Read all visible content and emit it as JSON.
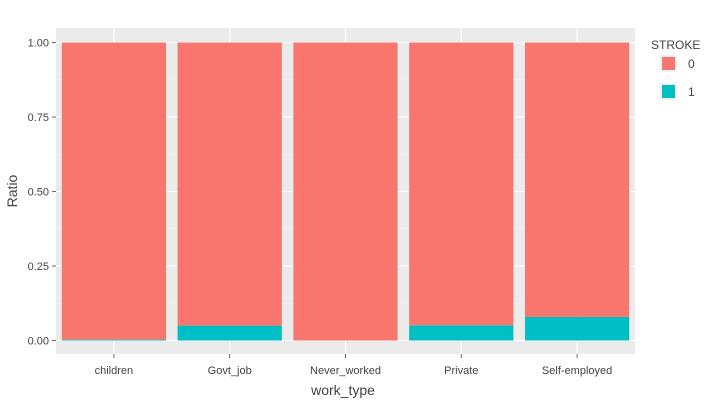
{
  "chart_data": {
    "type": "bar",
    "stacked": true,
    "categories": [
      "children",
      "Govt_job",
      "Never_worked",
      "Private",
      "Self-employed"
    ],
    "series": [
      {
        "name": "0",
        "values": [
          0.997,
          0.95,
          1.0,
          0.949,
          0.921
        ],
        "color": "#F8766D"
      },
      {
        "name": "1",
        "values": [
          0.003,
          0.05,
          0.0,
          0.051,
          0.079
        ],
        "color": "#00BFC4"
      }
    ],
    "xlabel": "work_type",
    "ylabel": "Ratio",
    "ylim": [
      0,
      1.0
    ],
    "yticks": [
      0,
      0.25,
      0.5,
      0.75,
      1.0
    ],
    "ytick_labels": [
      "0.00",
      "0.25",
      "0.50",
      "0.75",
      "1.00"
    ],
    "legend": {
      "title": "STROKE",
      "position": "right"
    },
    "grid": true,
    "panel_background": "#EBEBEB"
  }
}
